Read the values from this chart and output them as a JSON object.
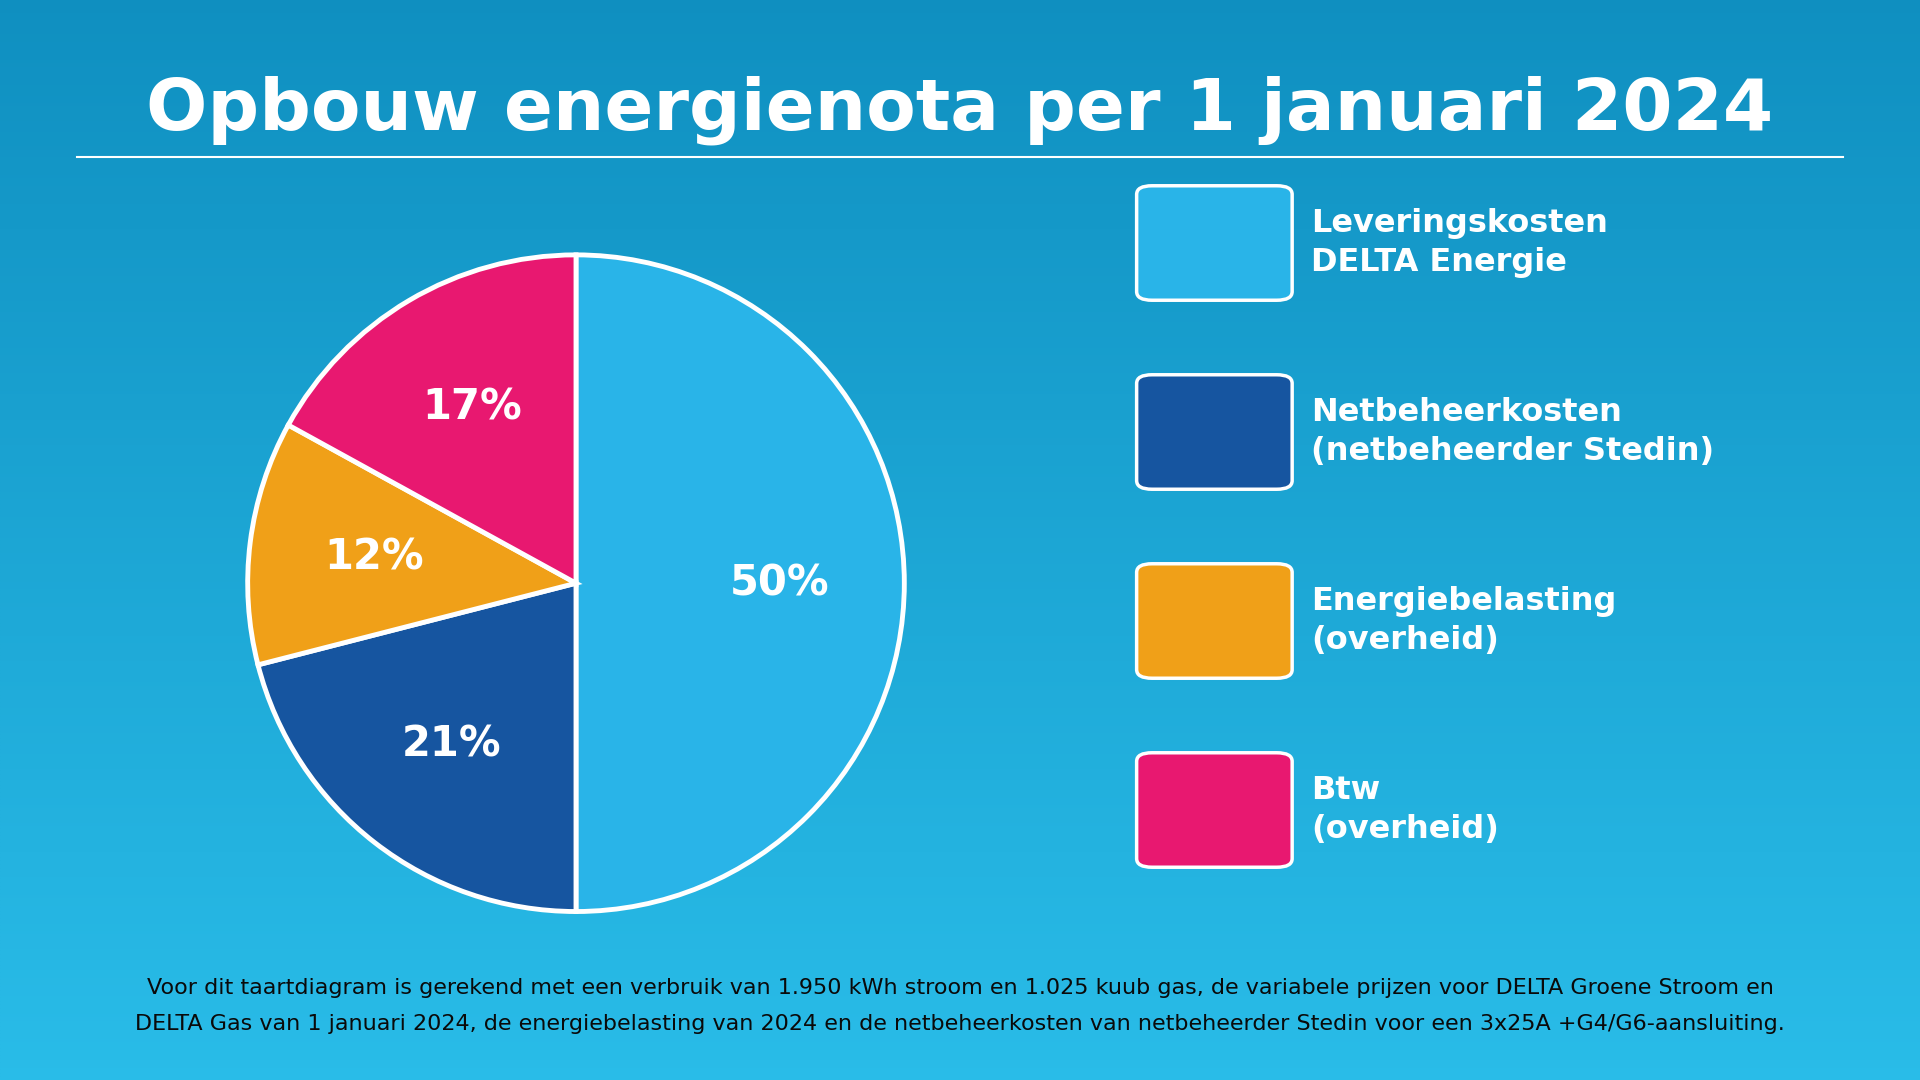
{
  "title": "Opbouw energienota per 1 januari 2024",
  "bg_color": "#1aadd6",
  "bg_gradient_top": "#0f8fc0",
  "bg_gradient_bottom": "#29bce8",
  "slices": [
    50,
    21,
    12,
    17
  ],
  "labels": [
    "50%",
    "21%",
    "12%",
    "17%"
  ],
  "colors": [
    "#29b4e8",
    "#1655a0",
    "#f0a018",
    "#e81870"
  ],
  "legend_labels": [
    "Leveringskosten\nDELTA Energie",
    "Netbeheerkosten\n(netbeheerder Stedin)",
    "Energiebelasting\n(overheid)",
    "Btw\n(overheid)"
  ],
  "legend_colors": [
    "#29b4e8",
    "#1655a0",
    "#f0a018",
    "#e81870"
  ],
  "footer_line1": "Voor dit taartdiagram is gerekend met een verbruik van 1.950 kWh stroom en 1.025 kuub gas, de variabele prijzen voor DELTA Groene Stroom en",
  "footer_line2": "DELTA Gas van 1 januari 2024, de energiebelasting van 2024 en de netbeheerkosten van netbeheerder Stedin voor een 3x25A +G4/G6-aansluiting.",
  "divider_color": "#ffffff",
  "text_color": "#ffffff",
  "footer_text_color": "#0a0a0a",
  "label_fontsize": 30,
  "title_fontsize": 52,
  "legend_fontsize": 23,
  "footer_fontsize": 16,
  "wedge_linewidth": 3.5
}
